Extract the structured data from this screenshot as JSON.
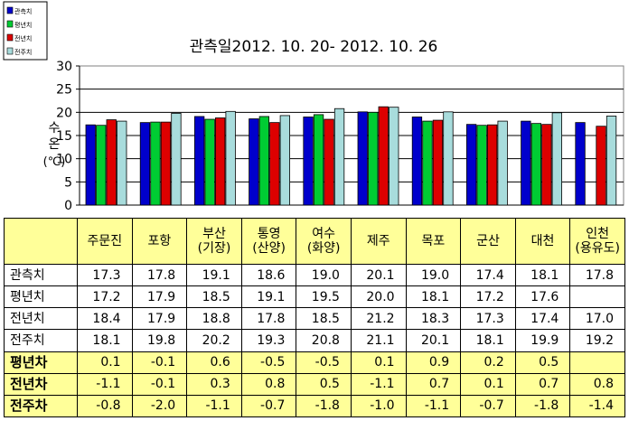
{
  "chart_data": {
    "type": "bar",
    "title": "관측일2012. 10. 20-  2012. 10. 26",
    "ylabel": [
      "수",
      "온",
      "(℃)"
    ],
    "ylim": [
      0,
      30
    ],
    "yticks": [
      "0",
      "5",
      "10",
      "15",
      "20",
      "25",
      "30"
    ],
    "grid": true,
    "legend_position": "top-left",
    "categories": [
      "주문진",
      "포항",
      "부산(기장)",
      "통영(산양)",
      "여수(화양)",
      "제주",
      "목포",
      "군산",
      "대천",
      "인천(용유도)"
    ],
    "series": [
      {
        "name": "관측치",
        "color": "#0000cc",
        "values": [
          17.3,
          17.8,
          19.1,
          18.6,
          19.0,
          20.1,
          19.0,
          17.4,
          18.1,
          17.8
        ]
      },
      {
        "name": "평년치",
        "color": "#00cc33",
        "values": [
          17.2,
          17.9,
          18.5,
          19.1,
          19.5,
          20.0,
          18.1,
          17.2,
          17.6,
          null
        ]
      },
      {
        "name": "전년치",
        "color": "#dd0000",
        "values": [
          18.4,
          17.9,
          18.8,
          17.8,
          18.5,
          21.2,
          18.3,
          17.3,
          17.4,
          17.0
        ]
      },
      {
        "name": "전주치",
        "color": "#a8dcdc",
        "values": [
          18.1,
          19.8,
          20.2,
          19.3,
          20.8,
          21.1,
          20.1,
          18.1,
          19.9,
          19.2
        ]
      }
    ]
  },
  "table": {
    "header": [
      {
        "lines": [
          "주문진"
        ]
      },
      {
        "lines": [
          "포항"
        ]
      },
      {
        "lines": [
          "부산",
          "(기장)"
        ]
      },
      {
        "lines": [
          "통영",
          "(산양)"
        ]
      },
      {
        "lines": [
          "여수",
          "(화양)"
        ]
      },
      {
        "lines": [
          "제주"
        ]
      },
      {
        "lines": [
          "목포"
        ]
      },
      {
        "lines": [
          "군산"
        ]
      },
      {
        "lines": [
          "대천"
        ]
      },
      {
        "lines": [
          "인천",
          "(용유도)"
        ]
      }
    ],
    "rows": [
      {
        "label": "관측치",
        "style": "white",
        "values": [
          "17.3",
          "17.8",
          "19.1",
          "18.6",
          "19.0",
          "20.1",
          "19.0",
          "17.4",
          "18.1",
          "17.8"
        ]
      },
      {
        "label": "평년치",
        "style": "white",
        "values": [
          "17.2",
          "17.9",
          "18.5",
          "19.1",
          "19.5",
          "20.0",
          "18.1",
          "17.2",
          "17.6",
          ""
        ]
      },
      {
        "label": "전년치",
        "style": "white",
        "values": [
          "18.4",
          "17.9",
          "18.8",
          "17.8",
          "18.5",
          "21.2",
          "18.3",
          "17.3",
          "17.4",
          "17.0"
        ]
      },
      {
        "label": "전주치",
        "style": "white",
        "values": [
          "18.1",
          "19.8",
          "20.2",
          "19.3",
          "20.8",
          "21.1",
          "20.1",
          "18.1",
          "19.9",
          "19.2"
        ]
      },
      {
        "label": "평년차",
        "style": "yellow",
        "values": [
          "0.1",
          "-0.1",
          "0.6",
          "-0.5",
          "-0.5",
          "0.1",
          "0.9",
          "0.2",
          "0.5",
          ""
        ]
      },
      {
        "label": "전년차",
        "style": "yellow",
        "values": [
          "-1.1",
          "-0.1",
          "0.3",
          "0.8",
          "0.5",
          "-1.1",
          "0.7",
          "0.1",
          "0.7",
          "0.8"
        ]
      },
      {
        "label": "전주차",
        "style": "yellow",
        "values": [
          "-0.8",
          "-2.0",
          "-1.1",
          "-0.7",
          "-1.8",
          "-1.0",
          "-1.1",
          "-0.7",
          "-1.8",
          "-1.4"
        ]
      }
    ]
  }
}
